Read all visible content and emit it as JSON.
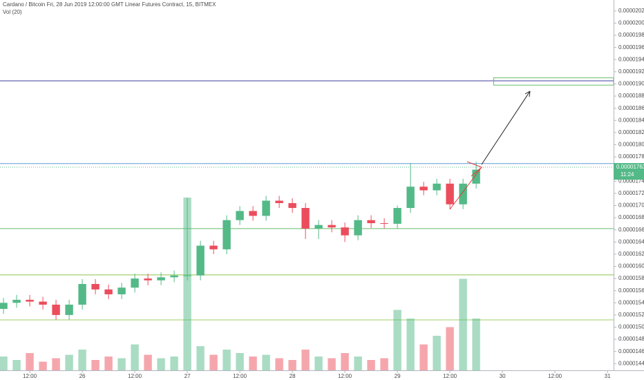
{
  "chart_data": {
    "type": "candlestick",
    "title": "Cardano / Bitcoin Fri, 28 Jun 2019 12:00:00 GMT Linear Futures Contract, 15, BITMEX",
    "subtitle": "Vol (20)",
    "x": [
      -18,
      -15,
      -12,
      -9,
      -6,
      -3,
      0,
      3,
      6,
      9,
      12,
      15,
      18,
      21,
      24,
      27,
      30,
      33,
      36,
      39,
      42,
      45,
      48,
      51,
      54,
      57,
      60,
      63,
      66,
      69,
      72,
      75,
      78,
      81,
      84,
      87,
      90
    ],
    "open": [
      1.53e-05,
      1.54e-05,
      1.545e-05,
      1.542e-05,
      1.537e-05,
      1.52e-05,
      1.537e-05,
      1.571e-05,
      1.562e-05,
      1.554e-05,
      1.565e-05,
      1.58e-05,
      1.577e-05,
      1.582e-05,
      1.585e-05,
      1.585e-05,
      1.634e-05,
      1.628e-05,
      1.676e-05,
      1.691e-05,
      1.683e-05,
      1.708e-05,
      1.704e-05,
      1.696e-05,
      1.662e-05,
      1.668e-05,
      1.664e-05,
      1.651e-05,
      1.676e-05,
      1.671e-05,
      1.67e-05,
      1.696e-05,
      1.731e-05,
      1.725e-05,
      1.736e-05,
      1.702e-05,
      1.736e-05
    ],
    "high": [
      1.548e-05,
      1.553e-05,
      1.553e-05,
      1.55e-05,
      1.545e-05,
      1.545e-05,
      1.579e-05,
      1.579e-05,
      1.57e-05,
      1.573e-05,
      1.588e-05,
      1.588e-05,
      1.59e-05,
      1.593e-05,
      1.713e-05,
      1.642e-05,
      1.642e-05,
      1.684e-05,
      1.699e-05,
      1.699e-05,
      1.716e-05,
      1.716e-05,
      1.712e-05,
      1.704e-05,
      1.676e-05,
      1.676e-05,
      1.672e-05,
      1.684e-05,
      1.684e-05,
      1.679e-05,
      1.7e-05,
      1.77e-05,
      1.739e-05,
      1.744e-05,
      1.744e-05,
      1.744e-05,
      1.772e-05
    ],
    "low": [
      1.522e-05,
      1.532e-05,
      1.534e-05,
      1.529e-05,
      1.512e-05,
      1.512e-05,
      1.529e-05,
      1.554e-05,
      1.546e-05,
      1.546e-05,
      1.557e-05,
      1.569e-05,
      1.569e-05,
      1.574e-05,
      1.577e-05,
      1.577e-05,
      1.62e-05,
      1.62e-05,
      1.668e-05,
      1.675e-05,
      1.675e-05,
      1.696e-05,
      1.688e-05,
      1.645e-05,
      1.645e-05,
      1.656e-05,
      1.64e-05,
      1.643e-05,
      1.663e-05,
      1.662e-05,
      1.662e-05,
      1.688e-05,
      1.717e-05,
      1.717e-05,
      1.694e-05,
      1.694e-05,
      1.728e-05
    ],
    "close": [
      1.54e-05,
      1.545e-05,
      1.542e-05,
      1.537e-05,
      1.52e-05,
      1.537e-05,
      1.571e-05,
      1.562e-05,
      1.554e-05,
      1.565e-05,
      1.58e-05,
      1.577e-05,
      1.582e-05,
      1.585e-05,
      1.585e-05,
      1.634e-05,
      1.628e-05,
      1.676e-05,
      1.691e-05,
      1.683e-05,
      1.708e-05,
      1.704e-05,
      1.696e-05,
      1.662e-05,
      1.668e-05,
      1.664e-05,
      1.651e-05,
      1.676e-05,
      1.671e-05,
      1.67e-05,
      1.696e-05,
      1.731e-05,
      1.725e-05,
      1.736e-05,
      1.702e-05,
      1.736e-05,
      1.759e-05
    ],
    "volume": [
      8,
      6,
      10,
      5,
      7,
      9,
      12,
      6,
      8,
      7,
      15,
      9,
      7,
      8,
      100,
      14,
      9,
      12,
      10,
      8,
      9,
      7,
      6,
      12,
      8,
      7,
      10,
      8,
      6,
      7,
      35,
      30,
      15,
      20,
      25,
      53,
      30
    ],
    "vlim": [
      0,
      100
    ],
    "up_color": "#53b987",
    "down_color": "#eb4d5c",
    "xlim": [
      -18.8,
      121.4
    ],
    "xticks": [
      {
        "value": -12,
        "label": "12:00"
      },
      {
        "value": 0,
        "label": "26"
      },
      {
        "value": 12,
        "label": "12:00"
      },
      {
        "value": 24,
        "label": "27"
      },
      {
        "value": 36,
        "label": "12:00"
      },
      {
        "value": 48,
        "label": "28"
      },
      {
        "value": 60,
        "label": "12:00"
      },
      {
        "value": 72,
        "label": "29"
      },
      {
        "value": 84,
        "label": "12:00"
      },
      {
        "value": 96,
        "label": "30"
      },
      {
        "value": 108,
        "label": "12:00"
      },
      {
        "value": 120,
        "label": "31"
      }
    ],
    "ylim": [
      1.429e-05,
      2.038e-05
    ],
    "yticks": [
      {
        "value": 1.44e-05,
        "label": "0.00001440"
      },
      {
        "value": 1.46e-05,
        "label": "0.00001460"
      },
      {
        "value": 1.48e-05,
        "label": "0.00001480"
      },
      {
        "value": 1.5e-05,
        "label": "0.00001500"
      },
      {
        "value": 1.52e-05,
        "label": "0.00001520"
      },
      {
        "value": 1.54e-05,
        "label": "0.00001540"
      },
      {
        "value": 1.56e-05,
        "label": "0.00001560"
      },
      {
        "value": 1.58e-05,
        "label": "0.00001580"
      },
      {
        "value": 1.6e-05,
        "label": "0.00001600"
      },
      {
        "value": 1.62e-05,
        "label": "0.00001620"
      },
      {
        "value": 1.64e-05,
        "label": "0.00001640"
      },
      {
        "value": 1.66e-05,
        "label": "0.00001660"
      },
      {
        "value": 1.68e-05,
        "label": "0.00001680"
      },
      {
        "value": 1.7e-05,
        "label": "0.00001700"
      },
      {
        "value": 1.72e-05,
        "label": "0.00001720"
      },
      {
        "value": 1.74e-05,
        "label": "0.00001740"
      },
      {
        "value": 1.76e-05,
        "label": "0.00001760"
      },
      {
        "value": 1.78e-05,
        "label": "0.00001780"
      },
      {
        "value": 1.8e-05,
        "label": "0.00001800"
      },
      {
        "value": 1.82e-05,
        "label": "0.00001820"
      },
      {
        "value": 1.84e-05,
        "label": "0.00001840"
      },
      {
        "value": 1.86e-05,
        "label": "0.00001860"
      },
      {
        "value": 1.88e-05,
        "label": "0.00001880"
      },
      {
        "value": 1.9e-05,
        "label": "0.00001900"
      },
      {
        "value": 1.92e-05,
        "label": "0.00001920"
      },
      {
        "value": 1.94e-05,
        "label": "0.00001940"
      },
      {
        "value": 1.96e-05,
        "label": "0.00001960"
      },
      {
        "value": 1.98e-05,
        "label": "0.00001980"
      },
      {
        "value": 2e-05,
        "label": "0.00002000"
      },
      {
        "value": 2.02e-05,
        "label": "0.00002020"
      }
    ],
    "levels": [
      {
        "value": 1.905e-05,
        "color": "#3f3f9f"
      },
      {
        "value": 1.769e-05,
        "color": "#5b9bd5"
      },
      {
        "value": 1.662e-05,
        "color": "#66bb6a"
      },
      {
        "value": 1.586e-05,
        "color": "#8bc34a"
      },
      {
        "value": 1.512e-05,
        "color": "#9ccc65"
      }
    ],
    "zone": {
      "from": 94,
      "low": 1.898e-05,
      "high": 1.91e-05,
      "color": "#66bb6a"
    },
    "last_price": {
      "value": 1.763e-05,
      "label": "0.00001763"
    },
    "countdown": "11:24"
  }
}
